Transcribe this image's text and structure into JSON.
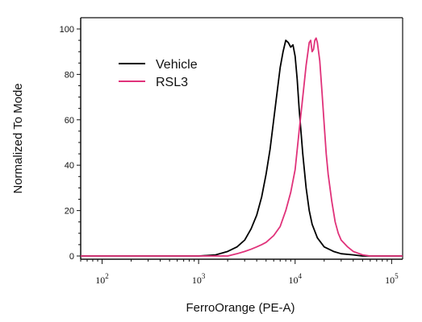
{
  "chart_data": {
    "type": "line",
    "title": "",
    "xlabel": "FerroOrange (PE-A)",
    "ylabel": "Normalized To Mode",
    "x_scale": "log",
    "xlim": [
      60,
      130000
    ],
    "ylim": [
      0,
      100
    ],
    "grid": false,
    "legend_position": "top-left",
    "x_ticks": [
      {
        "base": "10",
        "exp": "2",
        "value": 100
      },
      {
        "base": "10",
        "exp": "3",
        "value": 1000
      },
      {
        "base": "10",
        "exp": "4",
        "value": 10000
      },
      {
        "base": "10",
        "exp": "5",
        "value": 100000
      }
    ],
    "y_ticks": [
      {
        "label": "0",
        "value": 0
      },
      {
        "label": "20",
        "value": 20
      },
      {
        "label": "40",
        "value": 40
      },
      {
        "label": "60",
        "value": 60
      },
      {
        "label": "80",
        "value": 80
      },
      {
        "label": "100",
        "value": 100
      }
    ],
    "series": [
      {
        "name": "Vehicle",
        "color": "#000000",
        "points": [
          [
            60,
            0
          ],
          [
            1000,
            0
          ],
          [
            1500,
            0.5
          ],
          [
            2000,
            2
          ],
          [
            2500,
            4
          ],
          [
            3000,
            7
          ],
          [
            3500,
            12
          ],
          [
            4000,
            18
          ],
          [
            4500,
            26
          ],
          [
            5000,
            36
          ],
          [
            5500,
            47
          ],
          [
            6000,
            60
          ],
          [
            6500,
            72
          ],
          [
            7000,
            83
          ],
          [
            7500,
            90
          ],
          [
            8000,
            95
          ],
          [
            8500,
            94
          ],
          [
            9000,
            92
          ],
          [
            9500,
            93
          ],
          [
            10000,
            88
          ],
          [
            10500,
            78
          ],
          [
            11000,
            65
          ],
          [
            12000,
            45
          ],
          [
            13000,
            30
          ],
          [
            14000,
            20
          ],
          [
            15000,
            14
          ],
          [
            17000,
            8
          ],
          [
            20000,
            4
          ],
          [
            25000,
            2
          ],
          [
            30000,
            1
          ],
          [
            40000,
            0.5
          ],
          [
            50000,
            0
          ],
          [
            130000,
            0
          ]
        ]
      },
      {
        "name": "RSL3",
        "color": "#e0327a",
        "points": [
          [
            60,
            0
          ],
          [
            2000,
            0
          ],
          [
            2500,
            1
          ],
          [
            3000,
            2
          ],
          [
            3500,
            3
          ],
          [
            4000,
            4
          ],
          [
            4500,
            5
          ],
          [
            5000,
            6
          ],
          [
            6000,
            9
          ],
          [
            7000,
            13
          ],
          [
            8000,
            20
          ],
          [
            9000,
            28
          ],
          [
            10000,
            38
          ],
          [
            11000,
            55
          ],
          [
            12000,
            70
          ],
          [
            13000,
            84
          ],
          [
            14000,
            94
          ],
          [
            14500,
            95
          ],
          [
            15000,
            90
          ],
          [
            15500,
            91
          ],
          [
            16000,
            95
          ],
          [
            16500,
            96
          ],
          [
            17000,
            94
          ],
          [
            18000,
            86
          ],
          [
            19000,
            72
          ],
          [
            20000,
            58
          ],
          [
            21000,
            45
          ],
          [
            22000,
            36
          ],
          [
            24000,
            24
          ],
          [
            26000,
            15
          ],
          [
            28000,
            10
          ],
          [
            30000,
            7
          ],
          [
            35000,
            4
          ],
          [
            40000,
            2
          ],
          [
            50000,
            0.5
          ],
          [
            60000,
            0
          ],
          [
            130000,
            0
          ]
        ]
      }
    ]
  }
}
